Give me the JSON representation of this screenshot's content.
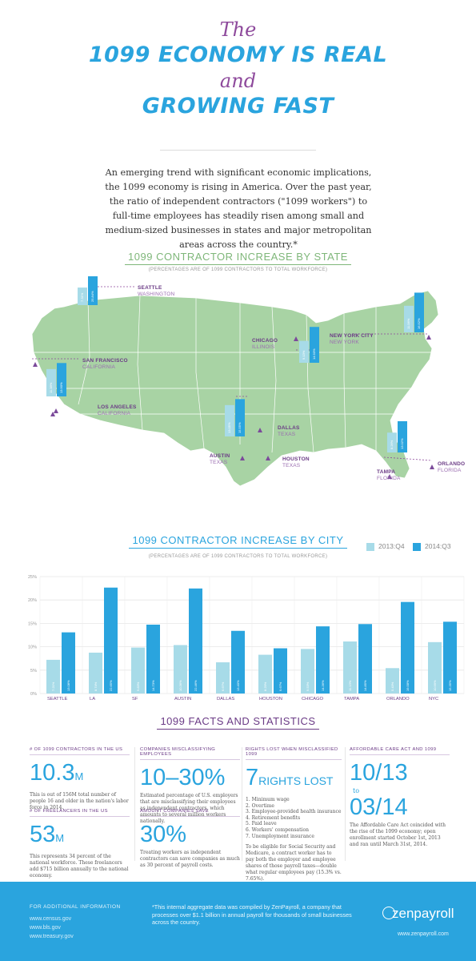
{
  "header": {
    "line1": "The",
    "line2": "1099 ECONOMY IS REAL",
    "line3": "and",
    "line4": "GROWING FAST"
  },
  "intro": "An emerging trend with significant economic implications, the 1099 economy is rising in America. Over the past year, the ratio of independent contractors (\"1099 workers\") to full-time employees has steadily risen among small and medium-sized businesses in states and major metropolitan areas across the country.*",
  "state_section": {
    "title": "1099 CONTRACTOR INCREASE BY STATE",
    "subtitle": "(PERCENTAGES ARE OF 1099 CONTRACTORS TO TOTAL WORKFORCE)",
    "map_color": "#a8d3a4",
    "locations": [
      {
        "city": "SEATTLE",
        "state": "WASHINGTON"
      },
      {
        "city": "SAN FRANCISCO",
        "state": "CALIFORNIA"
      },
      {
        "city": "LOS ANGELES",
        "state": "CALIFORNIA"
      },
      {
        "city": "CHICAGO",
        "state": "ILLINOIS"
      },
      {
        "city": "NEW YORK CITY",
        "state": "NEW YORK"
      },
      {
        "city": "DALLAS",
        "state": "TEXAS"
      },
      {
        "city": "AUSTIN",
        "state": "TEXAS"
      },
      {
        "city": "HOUSTON",
        "state": "TEXAS"
      },
      {
        "city": "TAMPA",
        "state": "FLORIDA"
      },
      {
        "city": "ORLANDO",
        "state": "FLORIDA"
      }
    ],
    "bars": [
      {
        "state": "WA",
        "v2013": "7.31%",
        "v2014": "25.84%",
        "a": 7.31,
        "b": 25.84
      },
      {
        "state": "CA",
        "v2013": "11.38%",
        "v2014": "13.90%",
        "a": 11.38,
        "b": 13.9
      },
      {
        "state": "IL",
        "v2013": "9.13%",
        "v2014": "14.93%",
        "a": 9.13,
        "b": 14.93
      },
      {
        "state": "NY",
        "v2013": "11.06%",
        "v2014": "16.52%",
        "a": 11.06,
        "b": 16.52
      },
      {
        "state": "TX",
        "v2013": "13.05%",
        "v2014": "15.55%",
        "a": 13.05,
        "b": 15.55
      },
      {
        "state": "FL",
        "v2013": "8.26%",
        "v2014": "13.02%",
        "a": 8.26,
        "b": 13.02
      }
    ]
  },
  "city_section": {
    "title": "1099 CONTRACTOR INCREASE BY CITY",
    "subtitle": "(PERCENTAGES ARE OF 1099 CONTRACTORS TO TOTAL WORKFORCE)",
    "legend": {
      "s2013": "2013:Q4",
      "s2014": "2014:Q3"
    }
  },
  "chart_data": {
    "type": "bar",
    "categories": [
      "SEATTLE",
      "LA",
      "SF",
      "AUSTIN",
      "DALLAS",
      "HOUSTON",
      "CHICAGO",
      "TAMPA",
      "ORLANDO",
      "NYC"
    ],
    "series": [
      {
        "name": "2013:Q4",
        "color": "#a7dbe8",
        "values": [
          7.21,
          8.74,
          9.83,
          10.36,
          6.67,
          8.29,
          9.53,
          11.13,
          5.43,
          10.99
        ],
        "labels": [
          "7.21%",
          "8.74%",
          "9.83%",
          "10.36%",
          "6.67%",
          "8.29%",
          "9.53%",
          "11.13%",
          "5.43%",
          "10.99%"
        ]
      },
      {
        "name": "2014:Q3",
        "color": "#2aa4de",
        "values": [
          13.08,
          22.65,
          14.73,
          22.46,
          13.4,
          9.67,
          14.36,
          14.85,
          19.58,
          15.35
        ],
        "labels": [
          "13.08%",
          "22.65%",
          "14.73%",
          "22.46%",
          "13.40%",
          "9.67%",
          "14.36%",
          "14.85%",
          "19.58%",
          "15.35%"
        ]
      }
    ],
    "yticks": [
      "0%",
      "5%",
      "10%",
      "15%",
      "20%",
      "25%"
    ],
    "ylim": [
      0,
      25
    ]
  },
  "facts": {
    "title": "1099 FACTS AND STATISTICS",
    "c1": {
      "label1": "# OF 1099 CONTRACTORS IN THE US",
      "num1": "10.3",
      "unit1": "M",
      "desc1": "This is out of 156M total number of people 16 and older in the nation's labor force in 2014.",
      "label2": "# OF FREELANCERS IN THE US",
      "num2": "53",
      "unit2": "M",
      "desc2": "This represents 34 percent of the national workforce. These freelancers add $715 billion annually to the national economy."
    },
    "c2": {
      "label1": "COMPANIES MISCLASSIFYING EMPLOYEES",
      "num1": "10–30%",
      "desc1": "Estimated percentage of U.S. employers that are misclassifying their employees as independent contractors, which amounts to several million workers nationally.",
      "label2": "AMOUNT COMPANIES SAVE",
      "num2": "30%",
      "desc2": "Treating workers as independent contractors can save companies as much as 30 percent of payroll costs."
    },
    "c3": {
      "label": "RIGHTS LOST WHEN MISCLASSIFIED 1099",
      "num": "7",
      "unit": "RIGHTS LOST",
      "items": [
        "1. Minimum wage",
        "2. Overtime",
        "3. Employee-provided health insurance",
        "4. Retirement benefits",
        "5. Paid leave",
        "6. Workers' compensation",
        "7. Unemployment insurance"
      ],
      "desc": "To be eligible for Social Security and Medicare, a contract worker has to pay both the employer and employee shares of those payroll taxes—double what regular employees pay (15.3% vs. 7.65%)."
    },
    "c4": {
      "label": "AFFORDABLE CARE ACT AND 1099",
      "num1": "10/13",
      "to": "to",
      "num2": "03/14",
      "desc": "The Affordable Care Act coincided with the rise of the 1099 economy; open enrollment started October 1st, 2013 and ran until March 31st, 2014."
    }
  },
  "footer": {
    "label": "FOR ADDITIONAL INFORMATION",
    "links": [
      "www.census.gov",
      "www.bls.gov",
      "www.treasury.gov"
    ],
    "note": "*This internal aggregate data was compiled by ZenPayroll, a company that processes over $1.1 billion in annual payroll for thousands of small businesses across the country.",
    "logo": "zenpayroll",
    "url": "www.zenpayroll.com"
  }
}
